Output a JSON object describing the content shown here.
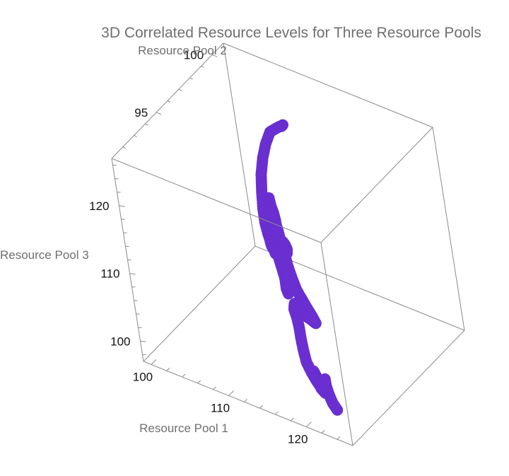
{
  "chart_data": {
    "type": "scatter3d",
    "title": "3D Correlated Resource Levels for Three Resource Pools",
    "xlabel": "Resource Pool 1",
    "ylabel": "Resource Pool 2",
    "zlabel": "Resource Pool 3",
    "xlim": [
      99,
      126
    ],
    "ylim": [
      91,
      101
    ],
    "zlim": [
      97,
      127
    ],
    "xticks": [
      "100",
      "110",
      "120"
    ],
    "yticks": [
      "95",
      "100"
    ],
    "zticks": [
      "100",
      "110",
      "120"
    ],
    "grid": false,
    "color": "#6a2fd0",
    "series": [
      {
        "values": [
          [
            107.2,
            100.0,
            120.4
          ],
          [
            107.7,
            99.6,
            121.1
          ],
          [
            108.3,
            99.1,
            122.2
          ],
          [
            108.9,
            98.4,
            123.3
          ],
          [
            109.4,
            97.7,
            124.3
          ],
          [
            109.6,
            97.1,
            123.6
          ],
          [
            109.8,
            96.6,
            122.5
          ],
          [
            110.3,
            96.0,
            121.3
          ],
          [
            110.9,
            95.5,
            119.9
          ],
          [
            111.6,
            95.0,
            118.6
          ],
          [
            112.3,
            94.6,
            117.5
          ],
          [
            113.0,
            94.3,
            116.7
          ],
          [
            113.8,
            94.0,
            116.1
          ],
          [
            114.5,
            93.8,
            115.3
          ],
          [
            114.9,
            94.2,
            114.3
          ],
          [
            114.3,
            94.8,
            113.5
          ],
          [
            113.5,
            95.3,
            112.9
          ],
          [
            112.6,
            95.7,
            112.5
          ],
          [
            111.8,
            96.0,
            112.1
          ],
          [
            112.5,
            95.6,
            111.4
          ],
          [
            113.6,
            95.1,
            110.9
          ],
          [
            114.8,
            94.6,
            110.5
          ],
          [
            116.1,
            94.1,
            110.1
          ],
          [
            117.4,
            93.7,
            109.9
          ],
          [
            118.6,
            93.3,
            109.9
          ],
          [
            119.8,
            92.9,
            110.0
          ],
          [
            120.7,
            92.6,
            109.9
          ],
          [
            120.0,
            92.9,
            109.2
          ],
          [
            118.9,
            93.3,
            108.4
          ],
          [
            117.6,
            93.7,
            107.6
          ],
          [
            116.3,
            94.1,
            106.8
          ],
          [
            115.2,
            94.6,
            106.0
          ],
          [
            114.2,
            95.0,
            105.3
          ],
          [
            113.5,
            95.4,
            104.4
          ],
          [
            113.2,
            95.8,
            103.2
          ],
          [
            113.6,
            95.5,
            104.2
          ],
          [
            114.0,
            95.0,
            105.6
          ],
          [
            114.6,
            94.6,
            106.6
          ],
          [
            115.5,
            94.0,
            107.2
          ],
          [
            116.6,
            93.5,
            107.4
          ],
          [
            117.6,
            93.0,
            107.2
          ],
          [
            118.5,
            92.5,
            106.8
          ],
          [
            119.3,
            92.1,
            106.1
          ],
          [
            120.0,
            91.8,
            105.2
          ],
          [
            121.0,
            91.5,
            104.7
          ],
          [
            122.0,
            91.2,
            104.5
          ],
          [
            123.0,
            90.9,
            104.5
          ],
          [
            123.9,
            90.7,
            104.3
          ],
          [
            122.9,
            91.0,
            104.0
          ],
          [
            121.6,
            91.5,
            104.0
          ],
          [
            120.6,
            91.9,
            104.0
          ],
          [
            121.6,
            91.5,
            104.3
          ],
          [
            122.7,
            91.1,
            104.8
          ],
          [
            123.4,
            90.8,
            105.6
          ],
          [
            124.0,
            90.6,
            106.4
          ],
          [
            124.5,
            90.5,
            107.0
          ],
          [
            124.7,
            90.4,
            106.2
          ],
          [
            124.9,
            90.4,
            105.1
          ],
          [
            125.4,
            90.3,
            104.2
          ],
          [
            125.9,
            90.3,
            103.4
          ]
        ]
      },
      {
        "values": [
          [
            112.5,
            95.3,
            115.6
          ],
          [
            111.5,
            95.8,
            114.6
          ],
          [
            110.6,
            96.2,
            113.4
          ],
          [
            109.9,
            96.5,
            112.1
          ],
          [
            109.5,
            96.6,
            110.8
          ],
          [
            109.3,
            96.6,
            109.6
          ],
          [
            108.8,
            96.8,
            108.6
          ],
          [
            107.8,
            97.3,
            108.0
          ],
          [
            106.7,
            97.9,
            107.9
          ],
          [
            105.7,
            98.4,
            108.0
          ],
          [
            104.9,
            98.8,
            108.1
          ],
          [
            104.5,
            99.0,
            108.2
          ],
          [
            105.6,
            98.5,
            108.3
          ],
          [
            106.9,
            97.9,
            108.5
          ],
          [
            108.2,
            97.3,
            108.6
          ],
          [
            109.5,
            96.7,
            108.6
          ],
          [
            110.8,
            96.1,
            108.7
          ],
          [
            112.1,
            95.5,
            108.7
          ],
          [
            112.8,
            95.2,
            108.4
          ],
          [
            113.0,
            95.1,
            107.5
          ],
          [
            113.1,
            95.1,
            106.5
          ],
          [
            113.1,
            95.0,
            107.5
          ],
          [
            112.6,
            95.3,
            109.0
          ],
          [
            112.0,
            95.6,
            110.5
          ],
          [
            111.4,
            95.9,
            112.0
          ],
          [
            110.9,
            96.2,
            113.2
          ],
          [
            110.2,
            96.6,
            113.4
          ],
          [
            109.2,
            97.1,
            113.2
          ],
          [
            108.1,
            97.6,
            112.9
          ],
          [
            107.1,
            98.1,
            112.8
          ],
          [
            108.3,
            97.5,
            112.8
          ],
          [
            109.7,
            96.8,
            113.0
          ],
          [
            111.0,
            96.2,
            113.3
          ],
          [
            112.2,
            95.6,
            113.7
          ],
          [
            113.3,
            95.0,
            114.1
          ],
          [
            114.2,
            94.5,
            114.6
          ],
          [
            114.8,
            94.2,
            115.3
          ],
          [
            114.0,
            94.6,
            115.6
          ],
          [
            112.8,
            95.2,
            115.8
          ],
          [
            111.6,
            95.7,
            116.1
          ],
          [
            110.6,
            96.1,
            116.4
          ],
          [
            111.3,
            95.8,
            116.1
          ]
        ]
      }
    ]
  }
}
